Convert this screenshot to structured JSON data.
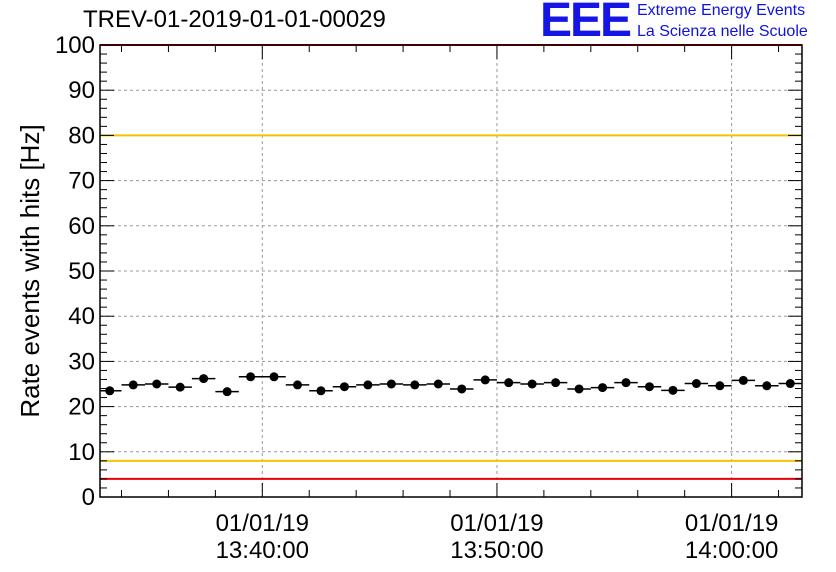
{
  "title": "TREV-01-2019-01-01-00029",
  "logo": {
    "letters": "EEE",
    "line1": "Extreme Energy Events",
    "line2": "La Scienza nelle Scuole"
  },
  "colors": {
    "red_threshold": "#e8000b",
    "yellow_threshold": "#f2c400",
    "logo_blue": "#1515e6",
    "grid": "#9a9a9a"
  },
  "chart_data": {
    "type": "scatter",
    "ylabel": "Rate events with hits [Hz]",
    "xlabel": "",
    "ylim": [
      0,
      100
    ],
    "yticks": [
      0,
      10,
      20,
      30,
      40,
      50,
      60,
      70,
      80,
      90,
      100
    ],
    "xlim": [
      "01/01/19 13:33:05",
      "01/01/19 14:03:00"
    ],
    "xticks": [
      {
        "time": "13:40:00",
        "date": "01/01/19",
        "label_date": "01/01/19",
        "label_time": "13:40:00"
      },
      {
        "time": "13:50:00",
        "date": "01/01/19",
        "label_date": "01/01/19",
        "label_time": "13:50:00"
      },
      {
        "time": "14:00:00",
        "date": "01/01/19",
        "label_date": "01/01/19",
        "label_time": "14:00:00"
      }
    ],
    "grid": true,
    "bin_width_minutes": 1,
    "series": [
      {
        "x": [
          "13:33:30",
          "13:34:30",
          "13:35:30",
          "13:36:30",
          "13:37:30",
          "13:38:30",
          "13:39:30",
          "13:40:30",
          "13:41:30",
          "13:42:30",
          "13:43:30",
          "13:44:30",
          "13:45:30",
          "13:46:30",
          "13:47:30",
          "13:48:30",
          "13:49:30",
          "13:50:30",
          "13:51:30",
          "13:52:30",
          "13:53:30",
          "13:54:30",
          "13:55:30",
          "13:56:30",
          "13:57:30",
          "13:58:30",
          "13:59:30",
          "14:00:30",
          "14:01:30",
          "14:02:30"
        ],
        "y": [
          23.5,
          24.8,
          25.0,
          24.3,
          26.2,
          23.3,
          26.6,
          26.6,
          24.8,
          23.5,
          24.4,
          24.8,
          25.0,
          24.8,
          25.0,
          23.9,
          25.9,
          25.3,
          25.0,
          25.3,
          23.9,
          24.2,
          25.3,
          24.4,
          23.6,
          25.1,
          24.6,
          25.8,
          24.6,
          25.1
        ],
        "yerr": 0.6
      }
    ],
    "thresholds": [
      {
        "value": 100,
        "color": "red"
      },
      {
        "value": 80,
        "color": "yellow"
      },
      {
        "value": 8,
        "color": "yellow"
      },
      {
        "value": 4,
        "color": "red"
      }
    ]
  }
}
